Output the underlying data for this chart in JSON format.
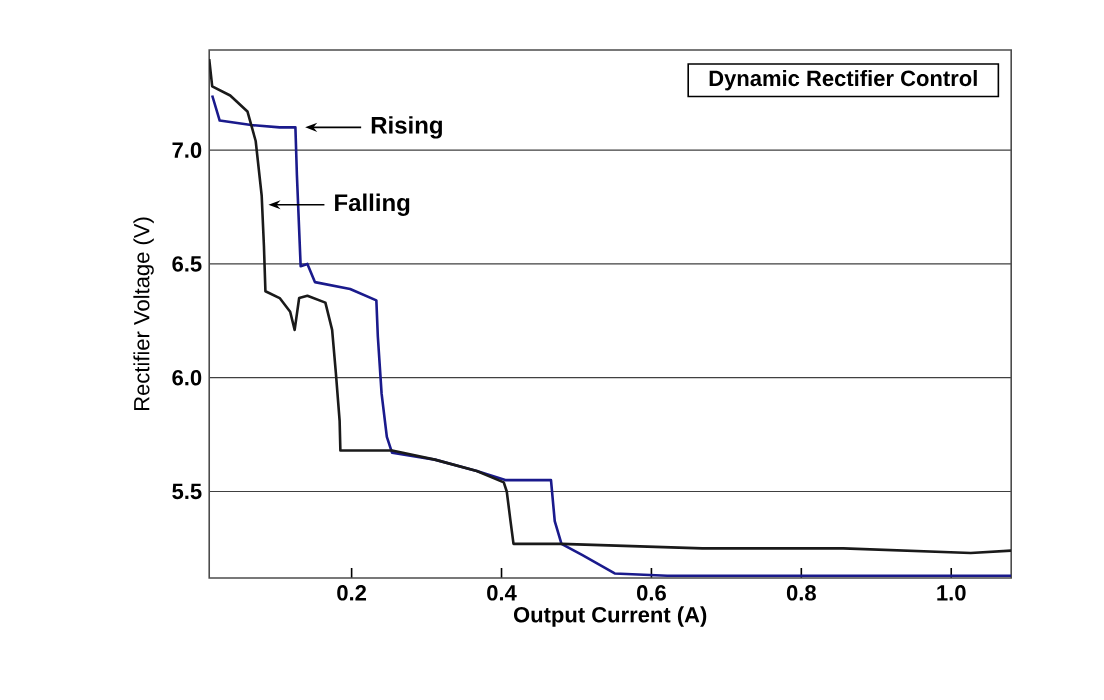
{
  "chart_data": {
    "type": "line",
    "title": "Dynamic Rectifier Control",
    "xlabel": "Output Current (A)",
    "ylabel": "Rectifier Voltage (V)",
    "xlim": [
      0.01,
      1.08
    ],
    "ylim": [
      5.12,
      7.44
    ],
    "xticks": [
      {
        "value": 0.2,
        "label": "0.2"
      },
      {
        "value": 0.4,
        "label": "0.4"
      },
      {
        "value": 0.6,
        "label": "0.6"
      },
      {
        "value": 0.8,
        "label": "0.8"
      },
      {
        "value": 1.0,
        "label": "1.0"
      }
    ],
    "yticks": [
      {
        "value": 5.5,
        "label": "5.5"
      },
      {
        "value": 6.0,
        "label": "6.0"
      },
      {
        "value": 6.5,
        "label": "6.5"
      },
      {
        "value": 7.0,
        "label": "7.0"
      }
    ],
    "grid": "y",
    "marker": "none",
    "line_style": "solid",
    "series": [
      {
        "color": "#1a1a8c",
        "x": [
          0.014,
          0.024,
          0.066,
          0.104,
          0.125,
          0.127,
          0.132,
          0.141,
          0.151,
          0.198,
          0.233,
          0.235,
          0.24,
          0.247,
          0.254,
          0.311,
          0.367,
          0.405,
          0.466,
          0.471,
          0.48,
          0.508,
          0.551,
          0.621,
          0.762,
          1.08
        ],
        "values": [
          7.24,
          7.13,
          7.11,
          7.1,
          7.1,
          6.89,
          6.49,
          6.5,
          6.42,
          6.39,
          6.34,
          6.18,
          5.93,
          5.74,
          5.67,
          5.64,
          5.59,
          5.55,
          5.55,
          5.37,
          5.27,
          5.22,
          5.14,
          5.13,
          5.13,
          5.13
        ]
      },
      {
        "color": "#1a1a1a",
        "x": [
          0.01,
          0.014,
          0.038,
          0.061,
          0.072,
          0.08,
          0.083,
          0.085,
          0.104,
          0.118,
          0.124,
          0.13,
          0.141,
          0.165,
          0.174,
          0.179,
          0.184,
          0.185,
          0.216,
          0.254,
          0.311,
          0.367,
          0.403,
          0.407,
          0.412,
          0.416,
          0.48,
          0.574,
          0.668,
          0.762,
          0.856,
          1.026,
          1.08
        ],
        "values": [
          7.4,
          7.28,
          7.24,
          7.17,
          7.04,
          6.8,
          6.58,
          6.38,
          6.35,
          6.29,
          6.21,
          6.35,
          6.36,
          6.33,
          6.21,
          6.02,
          5.81,
          5.68,
          5.68,
          5.68,
          5.64,
          5.59,
          5.54,
          5.5,
          5.37,
          5.27,
          5.27,
          5.26,
          5.25,
          5.25,
          5.25,
          5.23,
          5.24
        ]
      }
    ],
    "annotations": [
      {
        "text": "Rising",
        "x": 0.138,
        "y": 7.1
      },
      {
        "text": "Falling",
        "x": 0.089,
        "y": 6.76
      }
    ]
  }
}
